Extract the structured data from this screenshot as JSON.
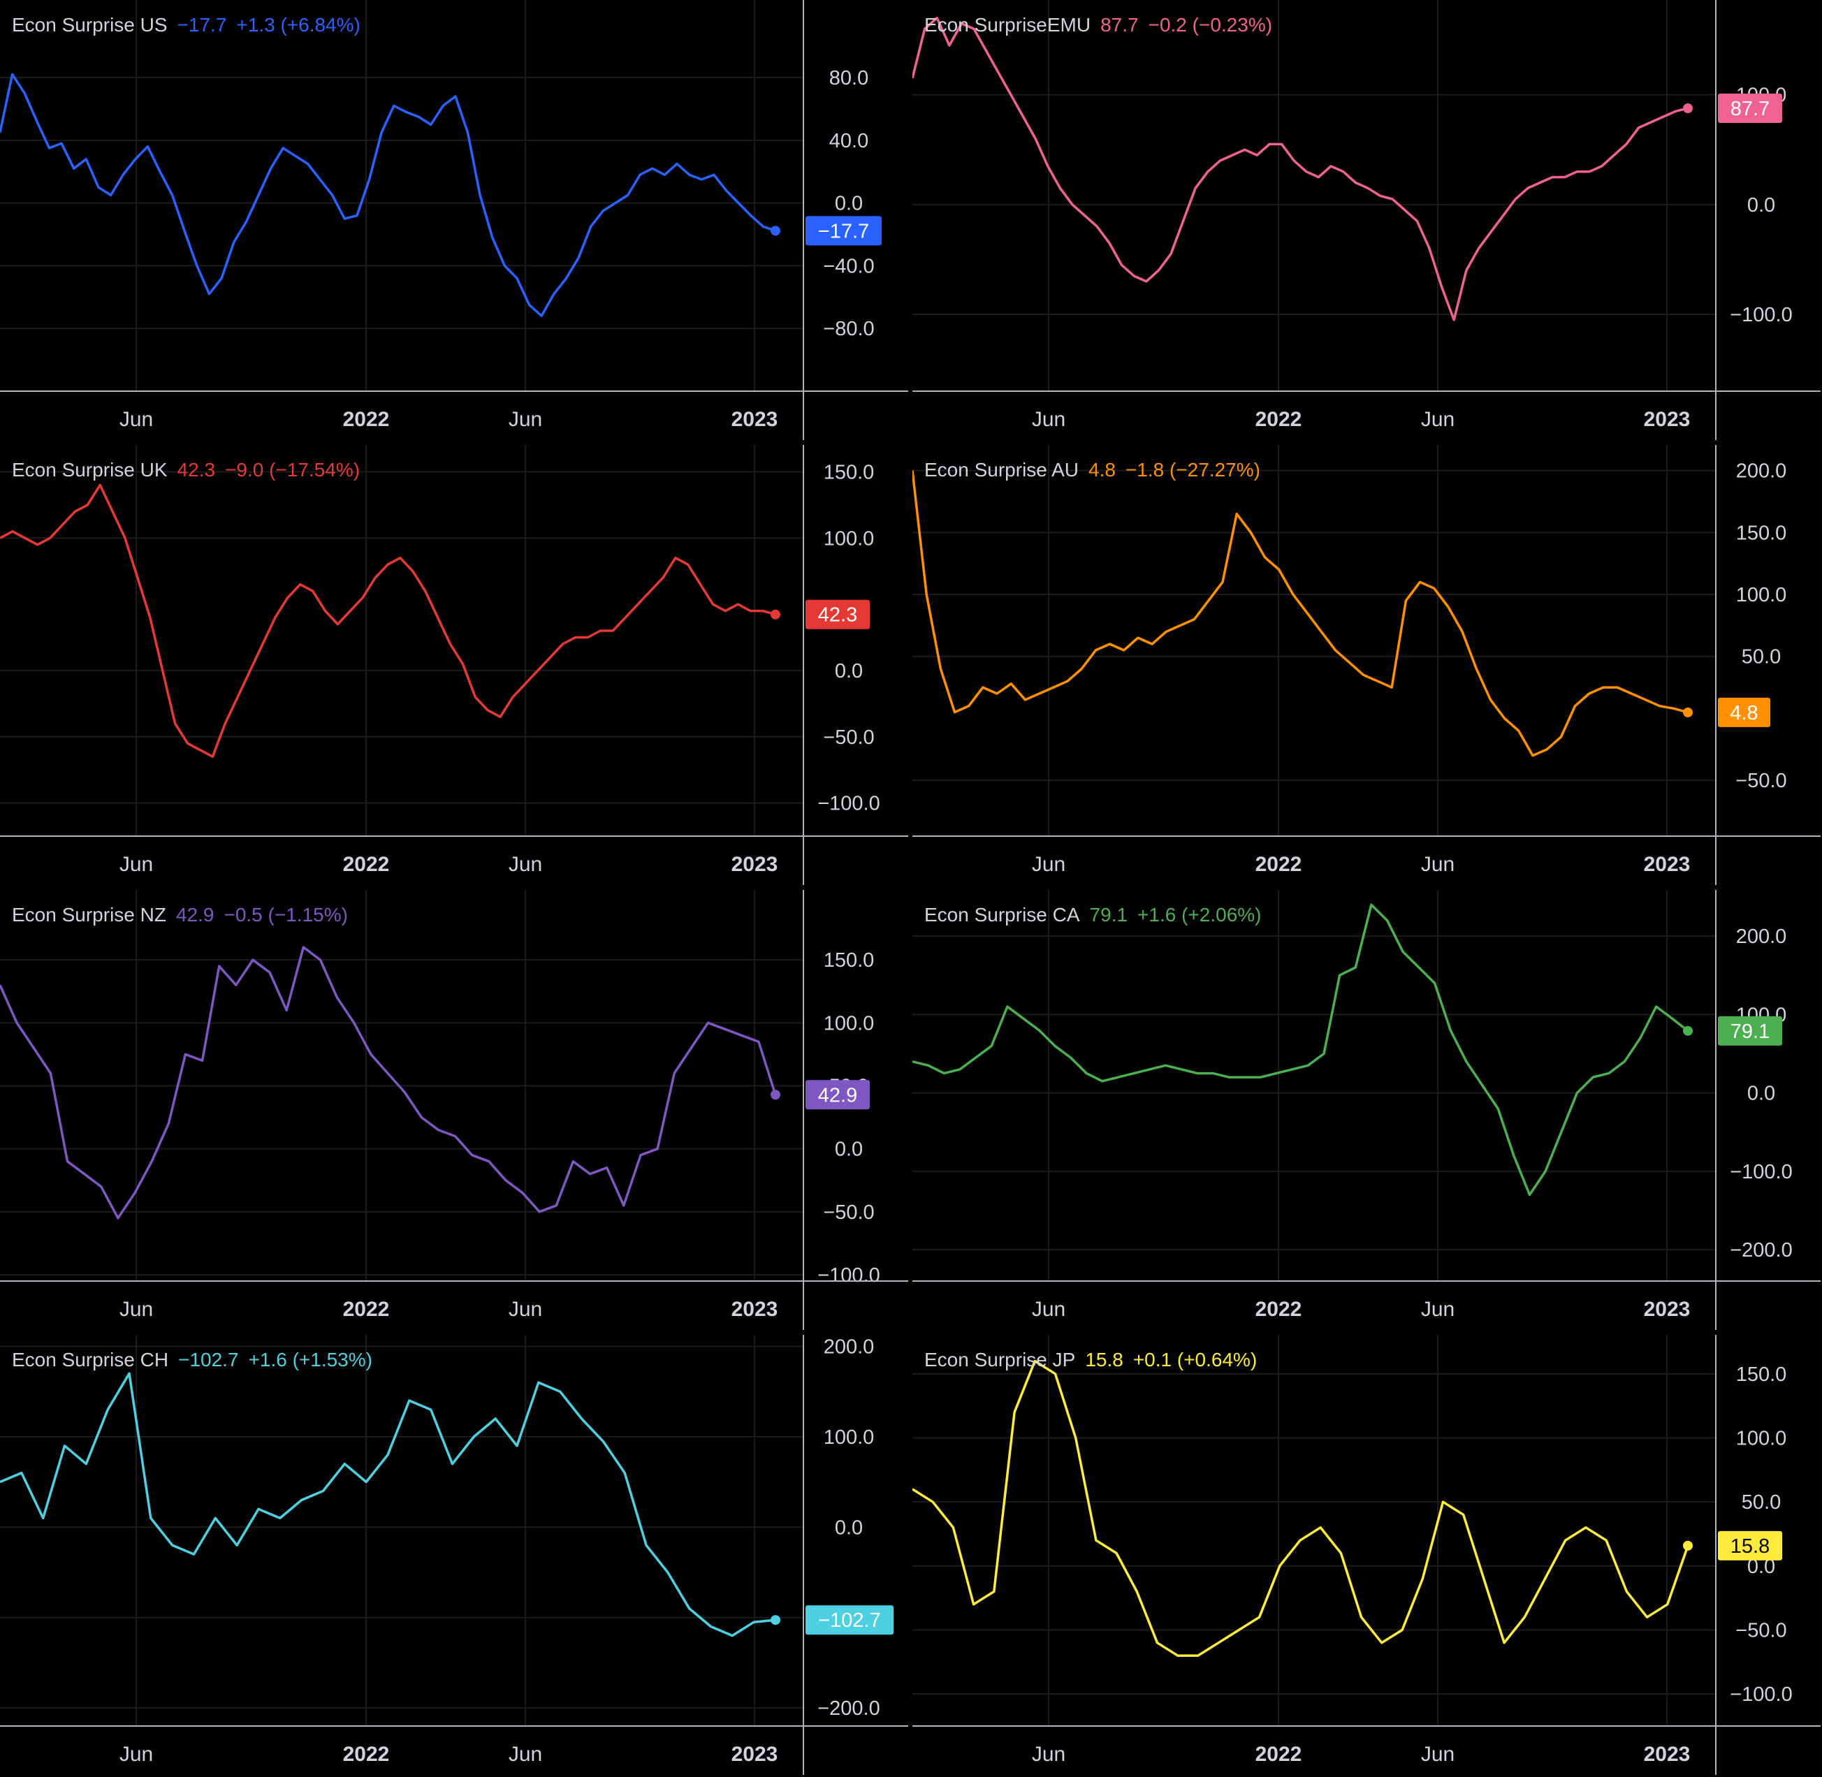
{
  "x_ticks": [
    "Jun",
    "2022",
    "Jun",
    "2023"
  ],
  "chart_data": [
    {
      "type": "line",
      "name": "Econ Surprise US",
      "last": "−17.7",
      "change": "+1.3 (+6.84%)",
      "color": "#2962ff",
      "ylim": [
        -120,
        125
      ],
      "yticks": [
        "80.0",
        "40.0",
        "0.0",
        "−40.0",
        "−80.0"
      ],
      "ytick_values": [
        80,
        40,
        0,
        -40,
        -80
      ],
      "y": [
        45,
        82,
        70,
        52,
        35,
        38,
        22,
        28,
        10,
        5,
        18,
        28,
        36,
        20,
        5,
        -18,
        -40,
        -58,
        -48,
        -25,
        -12,
        5,
        22,
        35,
        30,
        25,
        15,
        5,
        -10,
        -8,
        15,
        45,
        62,
        58,
        55,
        50,
        62,
        68,
        45,
        5,
        -22,
        -40,
        -48,
        -65,
        -72,
        -58,
        -48,
        -35,
        -15,
        -5,
        0,
        5,
        18,
        22,
        18,
        25,
        18,
        15,
        18,
        8,
        0,
        -8,
        -15,
        -17.7
      ]
    },
    {
      "type": "line",
      "name": "Econ SurpriseEMU",
      "last": "87.7",
      "change": "−0.2 (−0.23%)",
      "color": "#f06292",
      "ylim": [
        -170,
        180
      ],
      "yticks": [
        "100.0",
        "0.0",
        "−100.0"
      ],
      "ytick_values": [
        100,
        0,
        -100
      ],
      "y": [
        115,
        160,
        170,
        145,
        165,
        160,
        140,
        120,
        100,
        80,
        60,
        35,
        15,
        0,
        -10,
        -20,
        -35,
        -55,
        -65,
        -70,
        -60,
        -45,
        -15,
        15,
        30,
        40,
        45,
        50,
        45,
        55,
        55,
        40,
        30,
        25,
        35,
        30,
        20,
        15,
        8,
        5,
        -5,
        -15,
        -40,
        -75,
        -105,
        -60,
        -40,
        -25,
        -10,
        5,
        15,
        20,
        25,
        25,
        30,
        30,
        35,
        45,
        55,
        70,
        75,
        80,
        85,
        87.7
      ]
    },
    {
      "type": "line",
      "name": "Econ Surprise UK",
      "last": "42.3",
      "change": "−9.0 (−17.54%)",
      "color": "#e53935",
      "ylim": [
        -125,
        165
      ],
      "yticks": [
        "150.0",
        "100.0",
        "0.0",
        "−50.0",
        "−100.0"
      ],
      "ytick_values": [
        150,
        100,
        0,
        -50,
        -100
      ],
      "y": [
        100,
        105,
        100,
        95,
        100,
        110,
        120,
        125,
        140,
        120,
        100,
        70,
        40,
        0,
        -40,
        -55,
        -60,
        -65,
        -40,
        -20,
        0,
        20,
        40,
        55,
        65,
        60,
        45,
        35,
        45,
        55,
        70,
        80,
        85,
        75,
        60,
        40,
        20,
        5,
        -20,
        -30,
        -35,
        -20,
        -10,
        0,
        10,
        20,
        25,
        25,
        30,
        30,
        40,
        50,
        60,
        70,
        85,
        80,
        65,
        50,
        45,
        50,
        45,
        45,
        42.3
      ]
    },
    {
      "type": "line",
      "name": "Econ Surprise AU",
      "last": "4.8",
      "change": "−1.8 (−27.27%)",
      "color": "#ff9100",
      "ylim": [
        -95,
        215
      ],
      "yticks": [
        "200.0",
        "150.0",
        "100.0",
        "50.0",
        "−50.0"
      ],
      "ytick_values": [
        200,
        150,
        100,
        50,
        -50
      ],
      "y": [
        200,
        100,
        40,
        5,
        10,
        25,
        20,
        28,
        15,
        20,
        25,
        30,
        40,
        55,
        60,
        55,
        65,
        60,
        70,
        75,
        80,
        95,
        110,
        165,
        150,
        130,
        120,
        100,
        85,
        70,
        55,
        45,
        35,
        30,
        25,
        95,
        110,
        105,
        90,
        70,
        40,
        15,
        0,
        -10,
        -30,
        -25,
        -15,
        10,
        20,
        25,
        25,
        20,
        15,
        10,
        8,
        4.8
      ]
    },
    {
      "type": "line",
      "name": "Econ Surprise NZ",
      "last": "42.9",
      "change": "−0.5 (−1.15%)",
      "color": "#7e57c2",
      "ylim": [
        -105,
        200
      ],
      "yticks": [
        "150.0",
        "100.0",
        "50.0",
        "0.0",
        "−50.0",
        "−100.0"
      ],
      "ytick_values": [
        150,
        100,
        50,
        0,
        -50,
        -100
      ],
      "y": [
        130,
        100,
        80,
        60,
        -10,
        -20,
        -30,
        -55,
        -35,
        -10,
        20,
        75,
        70,
        145,
        130,
        150,
        140,
        110,
        160,
        150,
        120,
        100,
        75,
        60,
        45,
        25,
        15,
        10,
        -5,
        -10,
        -25,
        -35,
        -50,
        -45,
        -10,
        -20,
        -15,
        -45,
        -5,
        0,
        60,
        80,
        100,
        95,
        90,
        85,
        42.9
      ]
    },
    {
      "type": "line",
      "name": "Econ Surprise CA",
      "last": "79.1",
      "change": "+1.6 (+2.06%)",
      "color": "#4caf50",
      "ylim": [
        -240,
        250
      ],
      "yticks": [
        "200.0",
        "100.0",
        "0.0",
        "−100.0",
        "−200.0"
      ],
      "ytick_values": [
        200,
        100,
        0,
        -100,
        -200
      ],
      "y": [
        40,
        35,
        25,
        30,
        45,
        60,
        110,
        95,
        80,
        60,
        45,
        25,
        15,
        20,
        25,
        30,
        35,
        30,
        25,
        25,
        20,
        20,
        20,
        25,
        30,
        35,
        50,
        150,
        160,
        240,
        220,
        180,
        160,
        140,
        80,
        40,
        10,
        -20,
        -80,
        -130,
        -100,
        -50,
        0,
        20,
        25,
        40,
        70,
        110,
        95,
        79.1
      ]
    },
    {
      "type": "line",
      "name": "Econ Surprise CH",
      "last": "−102.7",
      "change": "+1.6 (+1.53%)",
      "color": "#4dd0e1",
      "ylim": [
        -220,
        205
      ],
      "yticks": [
        "200.0",
        "100.0",
        "0.0",
        "−100.0",
        "−200.0"
      ],
      "ytick_values": [
        200,
        100,
        0,
        -100,
        -200
      ],
      "y": [
        50,
        60,
        10,
        90,
        70,
        130,
        170,
        10,
        -20,
        -30,
        10,
        -20,
        20,
        10,
        30,
        40,
        70,
        50,
        80,
        140,
        130,
        70,
        100,
        120,
        90,
        160,
        150,
        120,
        95,
        60,
        -20,
        -50,
        -90,
        -110,
        -120,
        -105,
        -102.7
      ]
    },
    {
      "type": "line",
      "name": "Econ Surprise JP",
      "last": "15.8",
      "change": "+0.1 (+0.64%)",
      "color": "#ffeb3b",
      "ylim": [
        -125,
        175
      ],
      "yticks": [
        "150.0",
        "100.0",
        "50.0",
        "0.0",
        "−50.0",
        "−100.0"
      ],
      "ytick_values": [
        150,
        100,
        50,
        0,
        -50,
        -100
      ],
      "y": [
        60,
        50,
        30,
        -30,
        -20,
        120,
        160,
        150,
        100,
        20,
        10,
        -20,
        -60,
        -70,
        -70,
        -60,
        -50,
        -40,
        0,
        20,
        30,
        10,
        -40,
        -60,
        -50,
        -10,
        50,
        40,
        -10,
        -60,
        -40,
        -10,
        20,
        30,
        20,
        -20,
        -40,
        -30,
        15.8
      ]
    }
  ]
}
